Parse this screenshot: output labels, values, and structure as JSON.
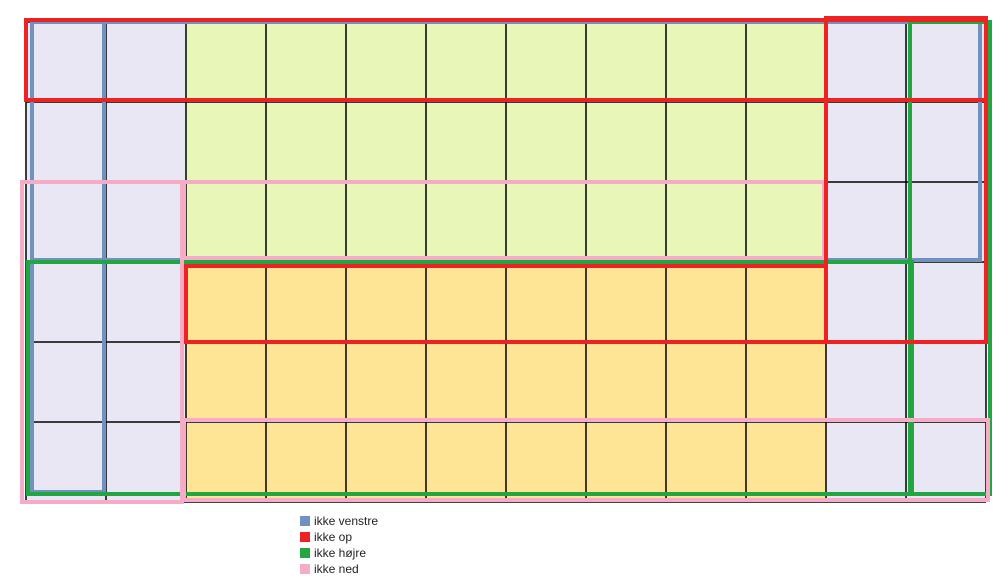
{
  "grid": {
    "rows": 6,
    "cols": 12,
    "line_color": "#000000"
  },
  "regions": [
    {
      "name": "background-cell",
      "fill": "#e8e7f3"
    },
    {
      "name": "green-block",
      "fill": "#e8f7b8",
      "rows": [
        0,
        2
      ],
      "cols": [
        2,
        9
      ]
    },
    {
      "name": "yellow-block",
      "fill": "#fee595",
      "rows": [
        3,
        5
      ],
      "cols": [
        2,
        9
      ]
    }
  ],
  "legend": {
    "items": [
      {
        "key": "venstre",
        "label": "ikke venstre",
        "color": "#6f92c1"
      },
      {
        "key": "op",
        "label": "ikke op",
        "color": "#ee2222"
      },
      {
        "key": "hojre",
        "label": "ikke højre",
        "color": "#22a642"
      },
      {
        "key": "ned",
        "label": "ikke ned",
        "color": "#f6abc6"
      }
    ]
  }
}
